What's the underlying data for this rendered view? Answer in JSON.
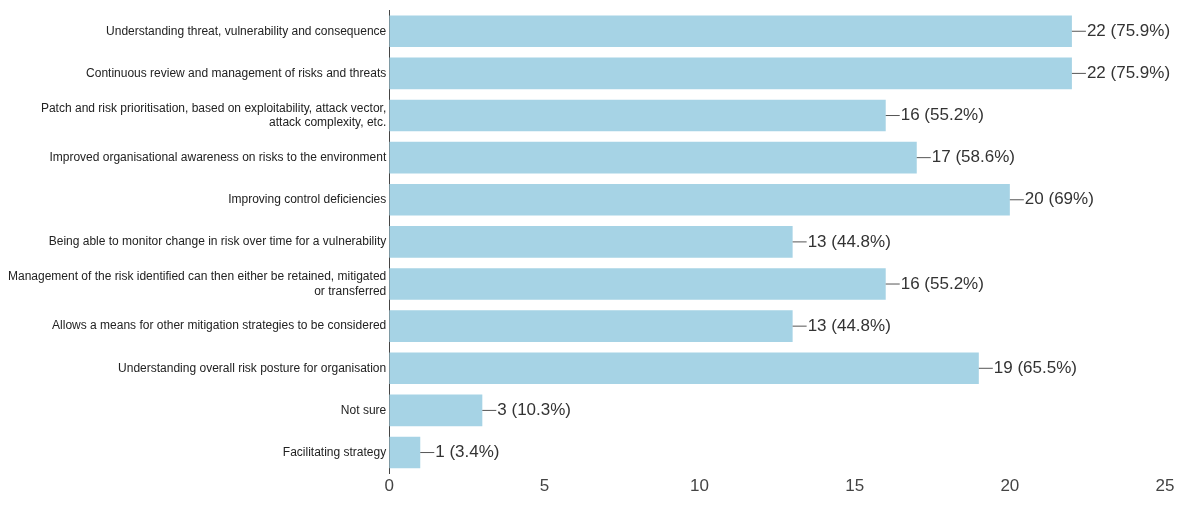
{
  "chart_data": {
    "type": "bar",
    "orientation": "horizontal",
    "categories": [
      "Understanding threat, vulnerability and consequence",
      "Continuous review and management of risks and threats",
      "Patch and risk prioritisation, based on exploitability, attack vector, attack complexity, etc.",
      "Improved organisational awareness on risks to the environment",
      "Improving control deficiencies",
      "Being able to monitor change in risk over time for a vulnerability",
      "Management of the risk identified can then either be retained, mitigated or transferred",
      "Allows a means for other mitigation strategies to be considered",
      "Understanding overall risk posture for organisation",
      "Not sure",
      "Facilitating strategy"
    ],
    "values": [
      22,
      22,
      16,
      17,
      20,
      13,
      16,
      13,
      19,
      3,
      1
    ],
    "value_labels": [
      "22 (75.9%)",
      "22 (75.9%)",
      "16 (55.2%)",
      "17 (58.6%)",
      "20 (69%)",
      "13 (44.8%)",
      "16 (55.2%)",
      "13 (44.8%)",
      "19 (65.5%)",
      "3 (10.3%)",
      "1 (3.4%)"
    ],
    "color": "#a6d3e5",
    "xlim": [
      0,
      25
    ],
    "xticks": [
      0,
      5,
      10,
      15,
      20,
      25
    ],
    "grid": false,
    "legend": false
  }
}
